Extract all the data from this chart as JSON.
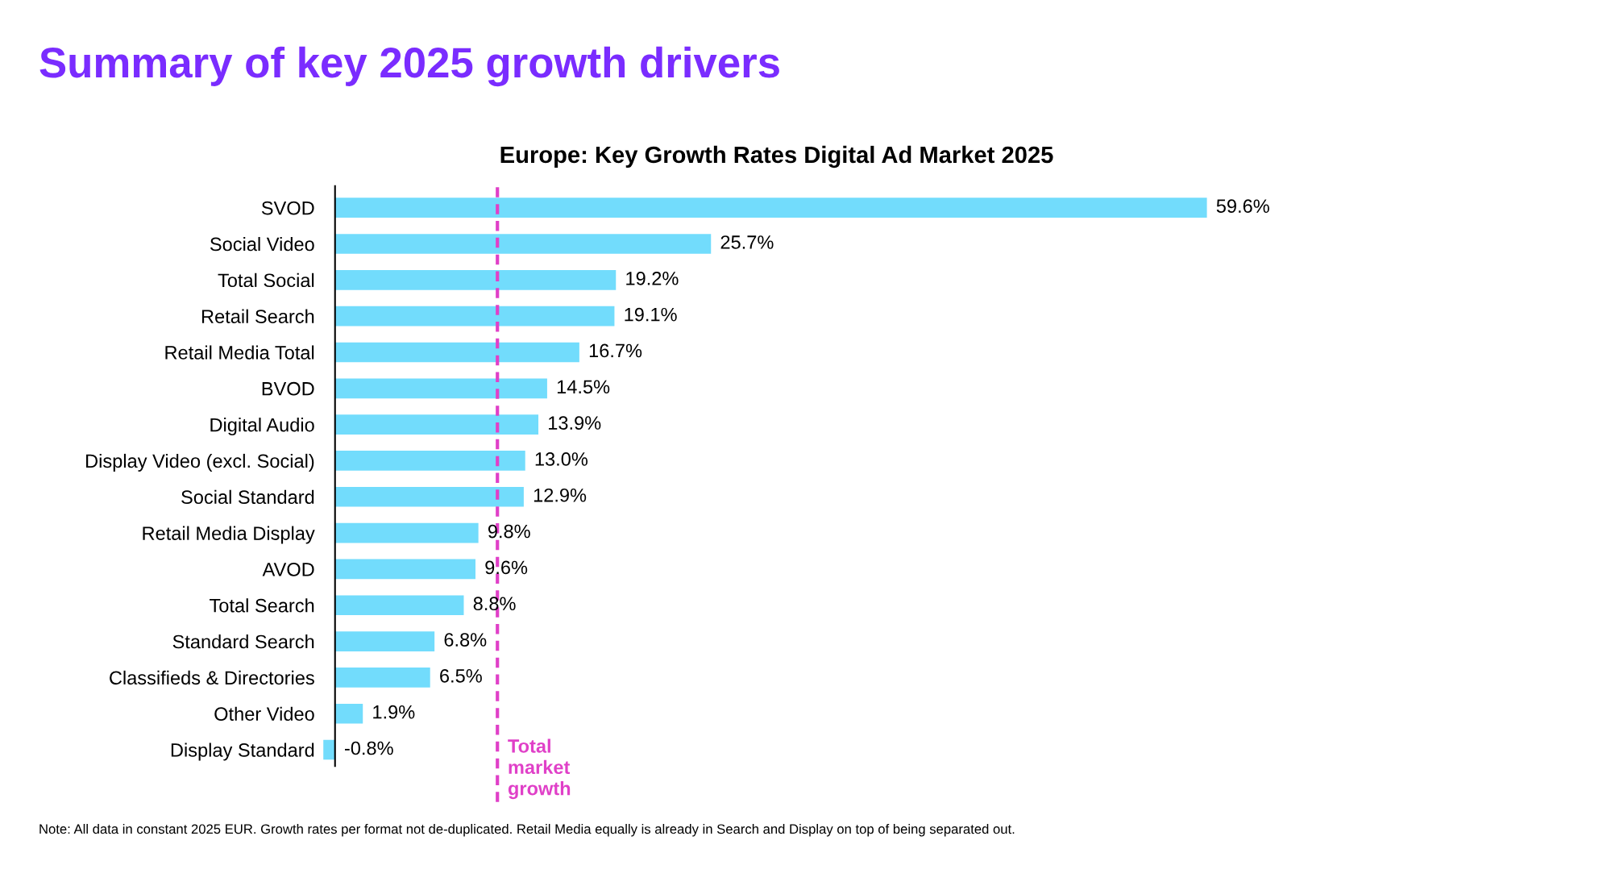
{
  "chart_data": {
    "type": "bar",
    "orientation": "horizontal",
    "title": "Summary of key 2025 growth drivers",
    "subtitle": "Europe: Key Growth Rates Digital Ad Market 2025",
    "categories": [
      "SVOD",
      "Social Video",
      "Total Social",
      "Retail Search",
      "Retail Media Total",
      "BVOD",
      "Digital Audio",
      "Display Video (excl. Social)",
      "Social Standard",
      "Retail Media Display",
      "AVOD",
      "Total Search",
      "Standard Search",
      "Classifieds & Directories",
      "Other Video",
      "Display Standard"
    ],
    "values": [
      59.6,
      25.7,
      19.2,
      19.1,
      16.7,
      14.5,
      13.9,
      13.0,
      12.9,
      9.8,
      9.6,
      8.8,
      6.8,
      6.5,
      1.9,
      -0.8
    ],
    "value_labels": [
      "59.6%",
      "25.7%",
      "19.2%",
      "19.1%",
      "16.7%",
      "14.5%",
      "13.9%",
      "13.0%",
      "12.9%",
      "9.8%",
      "9.6%",
      "8.8%",
      "6.8%",
      "6.5%",
      "1.9%",
      "-0.8%"
    ],
    "color": "#72dcfc",
    "ref_lines": [
      {
        "axis": "x",
        "value": 11.1,
        "label": "Total\nmarket\ngrowth",
        "color": "#e040c8",
        "line_style": "dashed"
      }
    ],
    "annotations": [
      "Note: All data in constant 2025 EUR. Growth rates per format not de-duplicated. Retail Media equally is already in Search and Display on top of being separated out."
    ],
    "grid": false,
    "legend": false
  }
}
